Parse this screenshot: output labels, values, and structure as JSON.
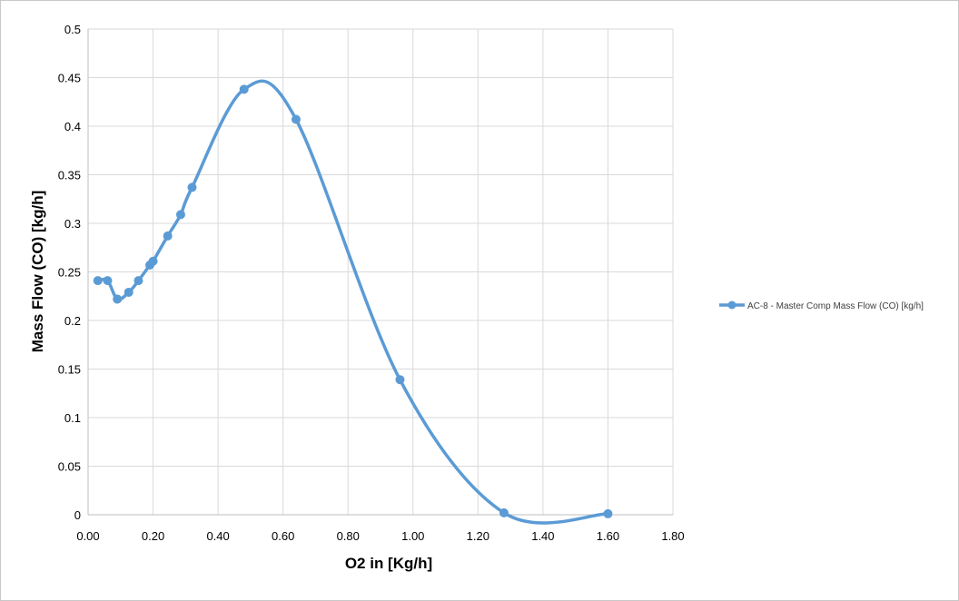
{
  "chart_data": {
    "type": "scatter",
    "title": "",
    "xlabel": "O2 in [Kg/h]",
    "ylabel": "Mass Flow (CO) [kg/h]",
    "xlim": [
      0,
      1.8
    ],
    "ylim": [
      0,
      0.5
    ],
    "x_ticks": [
      "0.00",
      "0.20",
      "0.40",
      "0.60",
      "0.80",
      "1.00",
      "1.20",
      "1.40",
      "1.60",
      "1.80"
    ],
    "y_ticks": [
      "0",
      "0.05",
      "0.1",
      "0.15",
      "0.2",
      "0.25",
      "0.3",
      "0.35",
      "0.4",
      "0.45",
      "0.5"
    ],
    "grid": true,
    "smooth": true,
    "legend_position": "right",
    "color": "#5b9bd5",
    "series": [
      {
        "name": "AC-8 - Master Comp Mass Flow (CO) [kg/h]",
        "x": [
          0.03,
          0.06,
          0.09,
          0.125,
          0.155,
          0.19,
          0.2,
          0.245,
          0.285,
          0.32,
          0.48,
          0.64,
          0.96,
          1.28,
          1.6
        ],
        "y": [
          0.241,
          0.241,
          0.222,
          0.229,
          0.241,
          0.257,
          0.261,
          0.287,
          0.309,
          0.337,
          0.438,
          0.407,
          0.139,
          0.002,
          0.001
        ]
      }
    ]
  }
}
